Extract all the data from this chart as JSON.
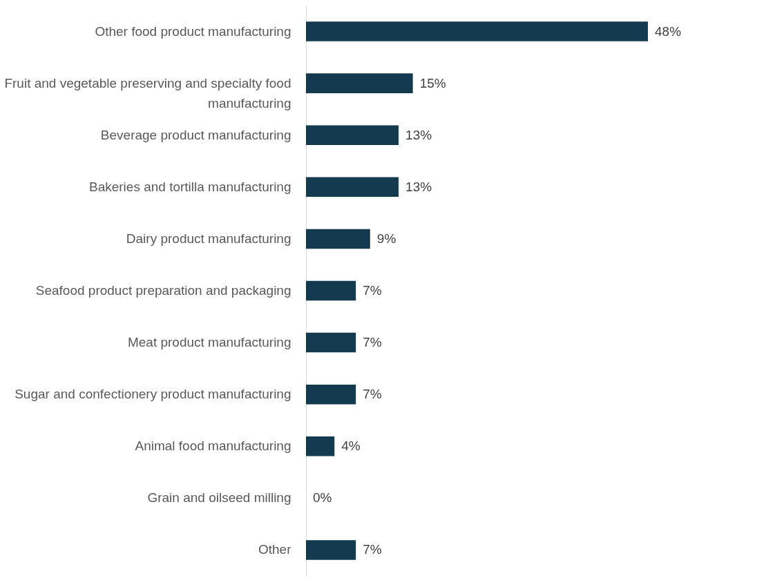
{
  "chart_data": {
    "type": "bar",
    "orientation": "horizontal",
    "categories": [
      "Other food product manufacturing",
      "Fruit and vegetable preserving and specialty food manufacturing",
      "Beverage product manufacturing",
      "Bakeries and tortilla manufacturing",
      "Dairy product manufacturing",
      "Seafood product preparation and packaging",
      "Meat product manufacturing",
      "Sugar and confectionery product manufacturing",
      "Animal food manufacturing",
      "Grain and oilseed milling",
      "Other"
    ],
    "values": [
      48,
      15,
      13,
      13,
      9,
      7,
      7,
      7,
      4,
      0,
      7
    ],
    "value_labels": [
      "48%",
      "15%",
      "13%",
      "13%",
      "9%",
      "7%",
      "7%",
      "7%",
      "4%",
      "0%",
      "7%"
    ],
    "color": "#133a4f",
    "tick_labels": "y"
  }
}
